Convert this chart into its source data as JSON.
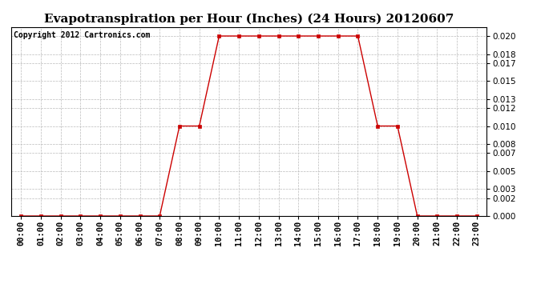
{
  "title": "Evapotranspiration per Hour (Inches) (24 Hours) 20120607",
  "copyright": "Copyright 2012 Cartronics.com",
  "hours": [
    "00:00",
    "01:00",
    "02:00",
    "03:00",
    "04:00",
    "05:00",
    "06:00",
    "07:00",
    "08:00",
    "09:00",
    "10:00",
    "11:00",
    "12:00",
    "13:00",
    "14:00",
    "15:00",
    "16:00",
    "17:00",
    "18:00",
    "19:00",
    "20:00",
    "21:00",
    "22:00",
    "23:00"
  ],
  "values": [
    0.0,
    0.0,
    0.0,
    0.0,
    0.0,
    0.0,
    0.0,
    0.0,
    0.01,
    0.01,
    0.02,
    0.02,
    0.02,
    0.02,
    0.02,
    0.02,
    0.02,
    0.02,
    0.01,
    0.01,
    0.0,
    0.0,
    0.0,
    0.0
  ],
  "line_color": "#cc0000",
  "marker": "s",
  "marker_size": 3,
  "bg_color": "#ffffff",
  "grid_color": "#bbbbbb",
  "title_fontsize": 11,
  "copyright_fontsize": 7,
  "tick_fontsize": 7.5,
  "ylim": [
    0.0,
    0.021
  ],
  "yticks": [
    0.0,
    0.002,
    0.003,
    0.005,
    0.007,
    0.008,
    0.01,
    0.012,
    0.013,
    0.015,
    0.017,
    0.018,
    0.02
  ]
}
